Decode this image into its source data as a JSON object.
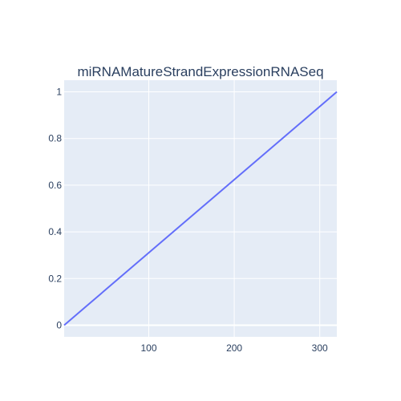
{
  "chart_data": {
    "type": "line",
    "title": "miRNAMatureStrandExpressionRNASeq",
    "xlabel": "",
    "ylabel": "",
    "xlim": [
      1,
      320
    ],
    "ylim": [
      -0.05,
      1.05
    ],
    "x_ticks": [
      100,
      200,
      300
    ],
    "y_ticks": [
      0,
      0.2,
      0.4,
      0.6,
      0.8,
      1
    ],
    "x_tick_labels": [
      "100",
      "200",
      "300"
    ],
    "y_tick_labels": [
      "0",
      "0.2",
      "0.4",
      "0.6",
      "0.8",
      "1"
    ],
    "grid": true,
    "legend": "none",
    "series": [
      {
        "color": "#636efa",
        "x": [
          1,
          320
        ],
        "y": [
          0,
          1
        ]
      }
    ]
  },
  "colors": {
    "plot_background": "#e5ecf6",
    "grid": "#ffffff",
    "text": "#2a3f5f",
    "line": "#636efa"
  }
}
